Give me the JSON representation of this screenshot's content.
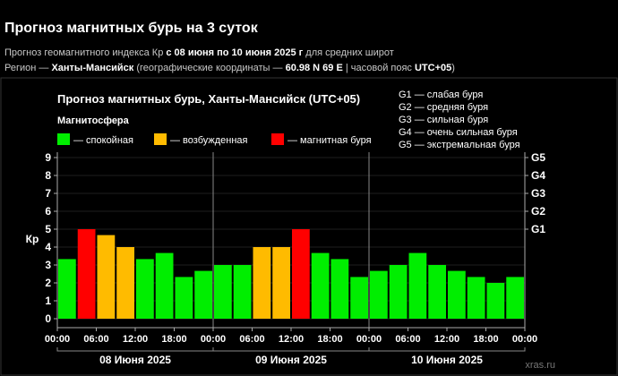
{
  "header": {
    "title": "Прогноз магнитных бурь на 3 суток",
    "line1": {
      "prefix": "Прогноз геомагнитного индекса Кр ",
      "range": "с 08 июня по 10 июня 2025 г",
      "suffix": " для средних широт"
    },
    "line2": {
      "prefix": "Регион — ",
      "region": "Ханты-Мансийск",
      "mid": " (географические координаты — ",
      "coords": "60.98 N 69 E",
      "mid2": " | часовой пояс ",
      "tz": "UTC+05",
      "suffix": ")"
    }
  },
  "chart_data": {
    "type": "bar",
    "title": "Прогноз магнитных бурь, Ханты-Мансийск (UTC+05)",
    "legend": {
      "title": "Магнитосфера",
      "items": [
        {
          "label": "— спокойная",
          "color": "#00ee00"
        },
        {
          "label": "— возбужденная",
          "color": "#ffbb00"
        },
        {
          "label": "— магнитная буря",
          "color": "#ff0000"
        }
      ]
    },
    "g_scale": [
      "G1 — слабая буря",
      "G2 — средняя буря",
      "G3 — сильная буря",
      "G4 — очень сильная буря",
      "G5 — экстремальная буря"
    ],
    "ylabel": "Кр",
    "ylim": [
      0,
      9
    ],
    "y_ticks": [
      "0",
      "1",
      "2",
      "3",
      "4",
      "5",
      "6",
      "7",
      "8",
      "9"
    ],
    "g_ticks": [
      {
        "label": "G1",
        "value": 5
      },
      {
        "label": "G2",
        "value": 6
      },
      {
        "label": "G3",
        "value": 7
      },
      {
        "label": "G4",
        "value": 8
      },
      {
        "label": "G5",
        "value": 9
      }
    ],
    "x_ticks": [
      "00:00",
      "06:00",
      "12:00",
      "18:00",
      "00:00",
      "06:00",
      "12:00",
      "18:00",
      "00:00",
      "06:00",
      "12:00",
      "18:00",
      "00:00"
    ],
    "days": [
      "08 Июня 2025",
      "09 Июня 2025",
      "10 Июня 2025"
    ],
    "values": [
      3.33,
      5.0,
      4.67,
      4.0,
      3.33,
      3.67,
      2.33,
      2.67,
      3.0,
      3.0,
      4.0,
      4.0,
      5.0,
      3.67,
      3.33,
      2.33,
      2.67,
      3.0,
      3.67,
      3.0,
      2.67,
      2.33,
      2.0,
      2.33
    ],
    "levels": [
      "quiet",
      "storm",
      "active",
      "active",
      "quiet",
      "quiet",
      "quiet",
      "quiet",
      "quiet",
      "quiet",
      "active",
      "active",
      "storm",
      "quiet",
      "quiet",
      "quiet",
      "quiet",
      "quiet",
      "quiet",
      "quiet",
      "quiet",
      "quiet",
      "quiet",
      "quiet"
    ],
    "colors": {
      "quiet": "#00ee00",
      "active": "#ffbb00",
      "storm": "#ff0000"
    }
  },
  "watermark": "xras.ru"
}
